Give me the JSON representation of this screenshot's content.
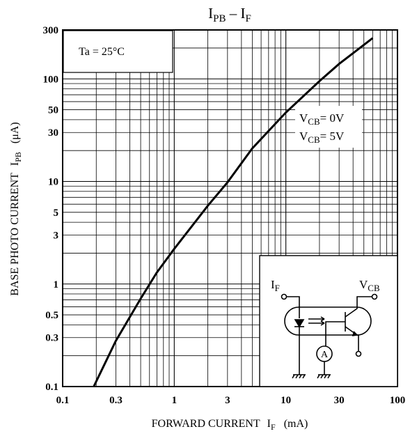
{
  "chart_data": {
    "type": "line",
    "title_main": "I",
    "title_main_sub": "PB",
    "title_sep": "–",
    "title_second": "I",
    "title_second_sub": "F",
    "xlabel": "FORWARD CURRENT",
    "xlabel_symbol": "I",
    "xlabel_symbol_sub": "F",
    "xlabel_unit": "(mA)",
    "ylabel": "BASE PHOTO CURRENT",
    "ylabel_symbol": "I",
    "ylabel_symbol_sub": "PB",
    "ylabel_unit": "(μA)",
    "x_scale": "log",
    "y_scale": "log",
    "xlim": [
      0.1,
      100
    ],
    "ylim": [
      0.1,
      300
    ],
    "x_ticks": [
      0.1,
      0.3,
      1,
      3,
      10,
      30,
      100
    ],
    "x_tick_labels": [
      "0.1",
      "0.3",
      "1",
      "3",
      "10",
      "30",
      "100"
    ],
    "y_ticks": [
      0.1,
      0.3,
      0.5,
      1,
      3,
      5,
      10,
      30,
      50,
      100,
      300
    ],
    "y_tick_labels": [
      "0.1",
      "0.3",
      "0.5",
      "1",
      "3",
      "5",
      "10",
      "30",
      "50",
      "100",
      "300"
    ],
    "grid": true,
    "condition_label": "Ta = 25°C",
    "series": [
      {
        "label_lines": [
          {
            "symbol": "V",
            "sub": "CB",
            "value": "= 0V"
          },
          {
            "symbol": "V",
            "sub": "CB",
            "value": "= 5V"
          }
        ],
        "x": [
          0.19,
          0.3,
          0.5,
          0.7,
          1,
          2,
          3,
          5,
          10,
          20,
          30,
          60
        ],
        "y": [
          0.1,
          0.28,
          0.72,
          1.3,
          2.2,
          5.8,
          9.8,
          21,
          47,
          95,
          140,
          250
        ]
      }
    ],
    "inset": {
      "label_if": "I",
      "label_if_sub": "F",
      "label_vcb": "V",
      "label_vcb_sub": "CB",
      "ammeter": "A"
    }
  }
}
